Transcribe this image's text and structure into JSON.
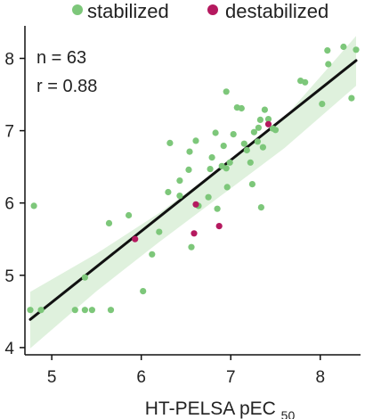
{
  "chart_data": {
    "type": "scatter",
    "title": "",
    "xlabel": "HT-PELSA pEC",
    "xlabel_subscript": "50",
    "ylabel": "",
    "xlim": [
      4.7,
      8.45
    ],
    "ylim": [
      3.9,
      8.45
    ],
    "xticks": [
      5,
      6,
      7,
      8
    ],
    "yticks": [
      4,
      5,
      6,
      7,
      8
    ],
    "grid": false,
    "legend_position": "top",
    "annotations": {
      "n": "n = 63",
      "r": "r = 0.88"
    },
    "colors": {
      "stabilized": "#7dc77a",
      "destabilized": "#b5195f",
      "fit_line": "#111111",
      "confidence_band": "#dcefd9"
    },
    "series": [
      {
        "name": "stabilized",
        "color": "#7dc77a",
        "points": [
          [
            4.76,
            4.52
          ],
          [
            4.8,
            5.96
          ],
          [
            4.88,
            4.52
          ],
          [
            5.26,
            4.52
          ],
          [
            5.37,
            4.97
          ],
          [
            5.37,
            4.52
          ],
          [
            5.45,
            4.52
          ],
          [
            5.64,
            5.72
          ],
          [
            5.66,
            4.52
          ],
          [
            5.86,
            5.83
          ],
          [
            6.02,
            4.78
          ],
          [
            6.12,
            5.29
          ],
          [
            6.2,
            5.6
          ],
          [
            6.3,
            6.15
          ],
          [
            6.32,
            6.83
          ],
          [
            6.43,
            6.31
          ],
          [
            6.43,
            6.1
          ],
          [
            6.53,
            6.46
          ],
          [
            6.54,
            6.71
          ],
          [
            6.56,
            5.39
          ],
          [
            6.61,
            6.86
          ],
          [
            6.64,
            5.96
          ],
          [
            6.75,
            6.08
          ],
          [
            6.77,
            6.47
          ],
          [
            6.79,
            6.63
          ],
          [
            6.83,
            6.97
          ],
          [
            6.85,
            5.92
          ],
          [
            6.9,
            6.51
          ],
          [
            6.92,
            6.79
          ],
          [
            6.95,
            6.48
          ],
          [
            6.95,
            7.54
          ],
          [
            6.96,
            6.22
          ],
          [
            6.99,
            6.56
          ],
          [
            7.03,
            6.95
          ],
          [
            7.07,
            7.32
          ],
          [
            7.12,
            7.31
          ],
          [
            7.15,
            6.82
          ],
          [
            7.18,
            6.73
          ],
          [
            7.22,
            6.56
          ],
          [
            7.24,
            6.26
          ],
          [
            7.26,
            6.98
          ],
          [
            7.3,
            6.85
          ],
          [
            7.31,
            7.04
          ],
          [
            7.33,
            7.15
          ],
          [
            7.34,
            5.94
          ],
          [
            7.36,
            6.77
          ],
          [
            7.38,
            7.29
          ],
          [
            7.42,
            7.16
          ],
          [
            7.47,
            7.03
          ],
          [
            7.5,
            7.01
          ],
          [
            7.78,
            7.69
          ],
          [
            7.83,
            7.67
          ],
          [
            8.02,
            7.37
          ],
          [
            8.08,
            8.11
          ],
          [
            8.09,
            7.92
          ],
          [
            8.26,
            8.16
          ],
          [
            8.35,
            7.45
          ],
          [
            8.4,
            8.12
          ]
        ]
      },
      {
        "name": "destabilized",
        "color": "#b5195f",
        "points": [
          [
            5.93,
            5.5
          ],
          [
            6.61,
            5.98
          ],
          [
            6.59,
            5.58
          ],
          [
            6.87,
            5.68
          ],
          [
            7.42,
            7.09
          ]
        ]
      }
    ],
    "fit_line": {
      "x": [
        4.76,
        8.4
      ],
      "y": [
        4.39,
        7.97
      ]
    },
    "confidence_band": {
      "x": [
        4.76,
        5.5,
        6.2,
        6.9,
        7.6,
        8.4
      ],
      "upper": [
        4.77,
        5.3,
        5.86,
        6.5,
        7.18,
        8.31
      ],
      "lower": [
        3.99,
        4.78,
        5.46,
        6.11,
        6.76,
        7.62
      ]
    }
  }
}
